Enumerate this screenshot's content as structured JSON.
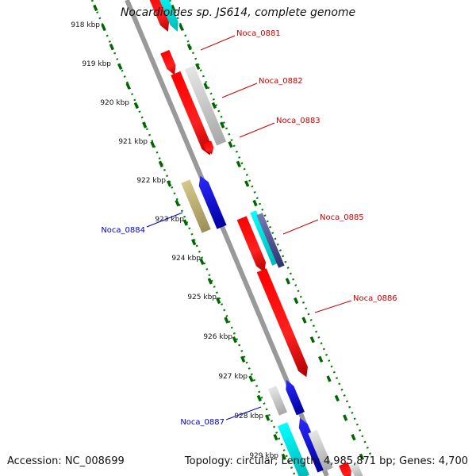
{
  "title": "Nocardioides sp. JS614, complete genome",
  "footer": {
    "accession": "Accession: NC_008699",
    "summary": "Topology: circular; Length: 4,985,871 bp; Genes: 4,700"
  },
  "colors": {
    "forward": "#ff0000",
    "reverse": "#0000ee",
    "cyan": "#00e6e6",
    "gray": "#c8c8c8",
    "olive": "#c0b070",
    "purple": "#505090",
    "scale_dots": "#008000",
    "axis": "#888888",
    "label_forward": "#cc0000",
    "label_reverse": "#0000cc"
  },
  "scale_ticks": [
    "918 kbp",
    "919 kbp",
    "920 kbp",
    "921 kbp",
    "922 kbp",
    "923 kbp",
    "924 kbp",
    "925 kbp",
    "926 kbp",
    "927 kbp",
    "928 kbp",
    "929 kbp"
  ],
  "gene_labels": [
    {
      "text": "Noca_0881",
      "strand": "forward"
    },
    {
      "text": "Noca_0882",
      "strand": "forward"
    },
    {
      "text": "Noca_0883",
      "strand": "forward"
    },
    {
      "text": "Noca_0884",
      "strand": "reverse"
    },
    {
      "text": "Noca_0885",
      "strand": "forward"
    },
    {
      "text": "Noca_0886",
      "strand": "forward"
    },
    {
      "text": "Noca_0887",
      "strand": "reverse"
    }
  ]
}
